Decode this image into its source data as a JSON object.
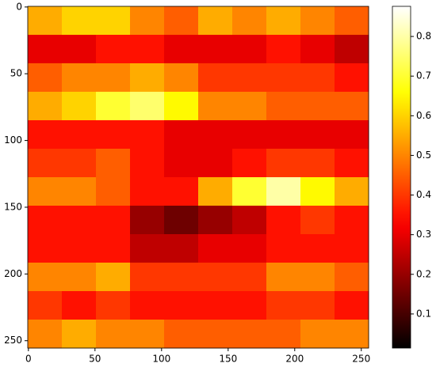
{
  "chart_data": {
    "type": "heatmap",
    "colormap": "hot",
    "xlim": [
      -0.5,
      255.5
    ],
    "ylim": [
      255.5,
      -0.5
    ],
    "xticks": [
      0,
      50,
      100,
      150,
      200,
      250
    ],
    "yticks": [
      0,
      50,
      100,
      150,
      200,
      250
    ],
    "clim": [
      0.014,
      0.876
    ],
    "cticks": [
      0.1,
      0.2,
      0.3,
      0.4,
      0.5,
      0.6,
      0.7,
      0.8
    ],
    "z": [
      [
        0.55,
        0.6,
        0.6,
        0.5,
        0.45,
        0.55,
        0.5,
        0.55,
        0.5,
        0.45
      ],
      [
        0.3,
        0.3,
        0.35,
        0.35,
        0.3,
        0.3,
        0.3,
        0.35,
        0.3,
        0.25
      ],
      [
        0.45,
        0.5,
        0.5,
        0.55,
        0.5,
        0.4,
        0.4,
        0.4,
        0.4,
        0.35
      ],
      [
        0.55,
        0.6,
        0.7,
        0.75,
        0.65,
        0.5,
        0.5,
        0.45,
        0.45,
        0.45
      ],
      [
        0.35,
        0.35,
        0.35,
        0.35,
        0.3,
        0.3,
        0.3,
        0.3,
        0.3,
        0.3
      ],
      [
        0.4,
        0.4,
        0.45,
        0.35,
        0.3,
        0.3,
        0.35,
        0.4,
        0.4,
        0.35
      ],
      [
        0.5,
        0.5,
        0.45,
        0.35,
        0.35,
        0.55,
        0.7,
        0.8,
        0.65,
        0.55
      ],
      [
        0.35,
        0.35,
        0.35,
        0.2,
        0.15,
        0.2,
        0.25,
        0.35,
        0.4,
        0.35
      ],
      [
        0.35,
        0.35,
        0.35,
        0.25,
        0.25,
        0.3,
        0.3,
        0.35,
        0.35,
        0.35
      ],
      [
        0.5,
        0.5,
        0.55,
        0.4,
        0.4,
        0.4,
        0.4,
        0.5,
        0.5,
        0.45
      ],
      [
        0.4,
        0.35,
        0.4,
        0.35,
        0.35,
        0.35,
        0.35,
        0.4,
        0.4,
        0.35
      ],
      [
        0.5,
        0.55,
        0.5,
        0.5,
        0.45,
        0.45,
        0.45,
        0.45,
        0.5,
        0.5
      ]
    ]
  }
}
